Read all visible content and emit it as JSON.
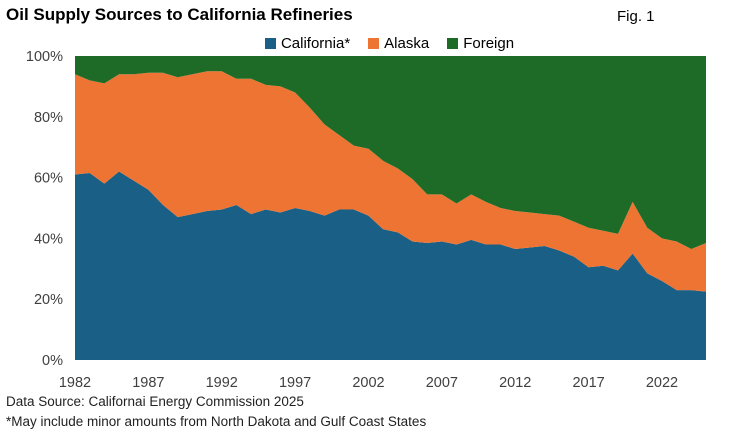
{
  "header": {
    "title": "Oil Supply Sources to California Refineries",
    "figure_label": "Fig. 1"
  },
  "footnotes": {
    "source": "Data Source: Californai Energy Commission 2025",
    "note": "*May include minor amounts from North Dakota and Gulf Coast States"
  },
  "colors": {
    "california": "#1a5f85",
    "alaska": "#ed7432",
    "foreign": "#1e6b27"
  },
  "chart_data": {
    "type": "area",
    "stacked": true,
    "title": "Oil Supply Sources to California Refineries",
    "x": [
      1982,
      1983,
      1984,
      1985,
      1986,
      1987,
      1988,
      1989,
      1990,
      1991,
      1992,
      1993,
      1994,
      1995,
      1996,
      1997,
      1998,
      1999,
      2000,
      2001,
      2002,
      2003,
      2004,
      2005,
      2006,
      2007,
      2008,
      2009,
      2010,
      2011,
      2012,
      2013,
      2014,
      2015,
      2016,
      2017,
      2018,
      2019,
      2020,
      2021,
      2022,
      2023,
      2024,
      2025
    ],
    "series": [
      {
        "name": "California*",
        "color": "#1a5f85",
        "values": [
          61,
          61.5,
          58,
          62,
          59,
          56,
          51,
          47,
          48,
          49,
          49.5,
          51,
          48,
          49.5,
          48.5,
          50,
          49,
          47.5,
          49.5,
          49.5,
          47.5,
          43,
          42,
          39,
          38.5,
          39,
          38,
          39.5,
          38,
          38,
          36.5,
          37,
          37.5,
          36,
          34,
          30.5,
          31,
          29.5,
          35,
          28.5,
          26,
          23,
          23,
          22.5
        ]
      },
      {
        "name": "Alaska",
        "color": "#ed7432",
        "values": [
          33,
          30.5,
          33,
          32,
          35,
          38.5,
          43.5,
          46,
          46,
          46,
          45.5,
          41.5,
          44.5,
          41,
          41.5,
          38,
          34,
          30,
          24.5,
          21,
          22,
          22.5,
          21,
          20.5,
          16,
          15.5,
          13.5,
          15,
          14,
          12,
          12.5,
          11.5,
          10.5,
          11.5,
          11.5,
          13,
          11.5,
          12,
          17,
          15,
          14,
          16,
          13.5,
          16
        ]
      },
      {
        "name": "Foreign",
        "color": "#1e6b27",
        "values": [
          6,
          8,
          9,
          6,
          6,
          5.5,
          5.5,
          7,
          6,
          5,
          5,
          7.5,
          7.5,
          9.5,
          10,
          12,
          17,
          22.5,
          26,
          29.5,
          30.5,
          34.5,
          37,
          40.5,
          45.5,
          45.5,
          48.5,
          45.5,
          48,
          50,
          51,
          51.5,
          52,
          52.5,
          54.5,
          56.5,
          57.5,
          58.5,
          48,
          56.5,
          60,
          61,
          63.5,
          61.5
        ]
      }
    ],
    "legend": [
      "California*",
      "Alaska",
      "Foreign"
    ],
    "legend_position": "top-center",
    "x_ticks": [
      1982,
      1987,
      1992,
      1997,
      2002,
      2007,
      2012,
      2017,
      2022
    ],
    "x_tick_labels": [
      "1982",
      "1987",
      "1992",
      "1997",
      "2002",
      "2007",
      "2012",
      "2017",
      "2022"
    ],
    "y_ticks": [
      0,
      20,
      40,
      60,
      80,
      100
    ],
    "y_tick_labels": [
      "0%",
      "20%",
      "40%",
      "60%",
      "80%",
      "100%"
    ],
    "ylim": [
      0,
      100
    ],
    "xlim": [
      1982,
      2025
    ],
    "xlabel": "",
    "ylabel": "",
    "grid": false
  }
}
